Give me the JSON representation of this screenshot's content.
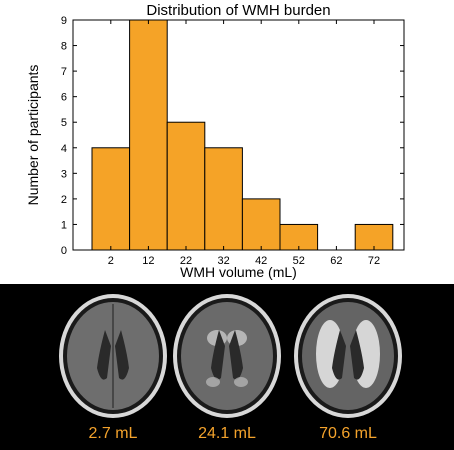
{
  "chart_data": {
    "type": "bar",
    "title": "Distribution of WMH burden",
    "xlabel": "WMH volume (mL)",
    "ylabel": "Number of participants",
    "categories": [
      "2",
      "12",
      "22",
      "32",
      "42",
      "52",
      "62",
      "72"
    ],
    "values": [
      4,
      9,
      5,
      4,
      2,
      1,
      0,
      1
    ],
    "ylim": [
      0,
      9
    ],
    "yticks": [
      0,
      1,
      2,
      3,
      4,
      5,
      6,
      7,
      8,
      9
    ],
    "bar_color": "#f5a327",
    "bar_edge_color": "#000000",
    "grid": false
  },
  "panel": {
    "background": "#000000",
    "label_color": "#f4a32c",
    "scans": [
      {
        "label": "2.7 mL",
        "lesion_level": "low"
      },
      {
        "label": "24.1 mL",
        "lesion_level": "medium"
      },
      {
        "label": "70.6 mL",
        "lesion_level": "high"
      }
    ]
  }
}
